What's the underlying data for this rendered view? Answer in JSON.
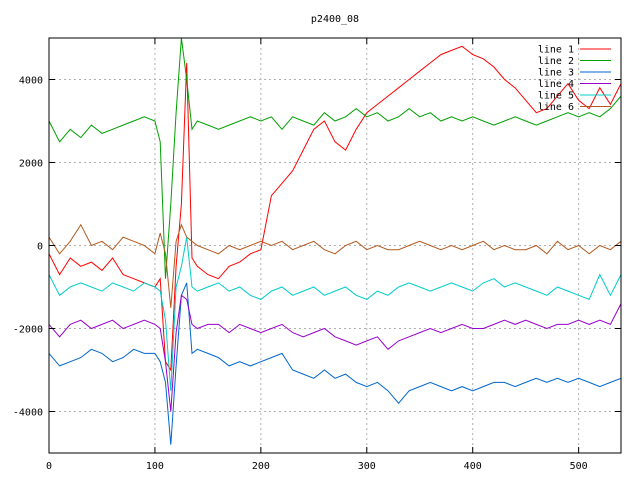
{
  "chart_data": {
    "type": "line",
    "title": "p2400_08",
    "xlabel": "",
    "ylabel": "",
    "xlim": [
      0,
      540
    ],
    "ylim": [
      -5000,
      5000
    ],
    "xticks": [
      0,
      100,
      200,
      300,
      400,
      500
    ],
    "yticks": [
      -4000,
      -2000,
      0,
      2000,
      4000
    ],
    "grid": true,
    "legend_position": "top-right",
    "x": [
      0,
      10,
      20,
      30,
      40,
      50,
      60,
      70,
      80,
      90,
      100,
      105,
      110,
      115,
      120,
      125,
      130,
      135,
      140,
      150,
      160,
      170,
      180,
      190,
      200,
      210,
      220,
      230,
      240,
      250,
      260,
      270,
      280,
      290,
      300,
      310,
      320,
      330,
      340,
      350,
      360,
      370,
      380,
      390,
      400,
      410,
      420,
      430,
      440,
      450,
      460,
      470,
      480,
      490,
      500,
      510,
      520,
      530,
      540
    ],
    "series": [
      {
        "name": "line 1",
        "color": "#ff0000",
        "values": [
          -200,
          -700,
          -300,
          -500,
          -400,
          -600,
          -300,
          -700,
          -800,
          -900,
          -1000,
          -800,
          -2800,
          -3000,
          -500,
          1000,
          4400,
          -300,
          -500,
          -700,
          -800,
          -500,
          -400,
          -200,
          -100,
          1200,
          1500,
          1800,
          2300,
          2800,
          3000,
          2500,
          2300,
          2800,
          3200,
          3400,
          3600,
          3800,
          4000,
          4200,
          4400,
          4600,
          4700,
          4800,
          4600,
          4500,
          4300,
          4000,
          3800,
          3500,
          3200,
          3300,
          3600,
          3900,
          3500,
          3300,
          3800,
          3400,
          3900
        ]
      },
      {
        "name": "line 2",
        "color": "#00a000",
        "values": [
          3000,
          2500,
          2800,
          2600,
          2900,
          2700,
          2800,
          2900,
          3000,
          3100,
          3000,
          2500,
          -800,
          1000,
          3200,
          5000,
          4000,
          2800,
          3000,
          2900,
          2800,
          2900,
          3000,
          3100,
          3000,
          3100,
          2800,
          3100,
          3000,
          2900,
          3200,
          3000,
          3100,
          3300,
          3100,
          3200,
          3000,
          3100,
          3300,
          3100,
          3200,
          3000,
          3100,
          3000,
          3100,
          3000,
          2900,
          3000,
          3100,
          3000,
          2900,
          3000,
          3100,
          3200,
          3100,
          3200,
          3100,
          3300,
          3600
        ]
      },
      {
        "name": "line 3",
        "color": "#0066cc",
        "values": [
          -2600,
          -2900,
          -2800,
          -2700,
          -2500,
          -2600,
          -2800,
          -2700,
          -2500,
          -2600,
          -2600,
          -2800,
          -3300,
          -4800,
          -2900,
          -1200,
          -900,
          -2600,
          -2500,
          -2600,
          -2700,
          -2900,
          -2800,
          -2900,
          -2800,
          -2700,
          -2600,
          -3000,
          -3100,
          -3200,
          -3000,
          -3200,
          -3100,
          -3300,
          -3400,
          -3300,
          -3500,
          -3800,
          -3500,
          -3400,
          -3300,
          -3400,
          -3500,
          -3400,
          -3500,
          -3400,
          -3300,
          -3300,
          -3400,
          -3300,
          -3200,
          -3300,
          -3200,
          -3300,
          -3200,
          -3300,
          -3400,
          -3300,
          -3200
        ]
      },
      {
        "name": "line 4",
        "color": "#9900cc",
        "values": [
          -1900,
          -2200,
          -1900,
          -1800,
          -2000,
          -1900,
          -1800,
          -2000,
          -1900,
          -1800,
          -1900,
          -2000,
          -2800,
          -4000,
          -2100,
          -1200,
          -1300,
          -1900,
          -2000,
          -1900,
          -1900,
          -2100,
          -1900,
          -2000,
          -2100,
          -2000,
          -1900,
          -2100,
          -2200,
          -2100,
          -2000,
          -2200,
          -2300,
          -2400,
          -2300,
          -2200,
          -2500,
          -2300,
          -2200,
          -2100,
          -2000,
          -2100,
          -2000,
          -1900,
          -2000,
          -2000,
          -1900,
          -1800,
          -1900,
          -1800,
          -1900,
          -2000,
          -1900,
          -1900,
          -1800,
          -1900,
          -1800,
          -1900,
          -1400
        ]
      },
      {
        "name": "line 5",
        "color": "#00cccc",
        "values": [
          -700,
          -1200,
          -1000,
          -900,
          -1000,
          -1100,
          -900,
          -1000,
          -1100,
          -900,
          -1000,
          -1100,
          -1800,
          -3500,
          -1000,
          -500,
          200,
          -1000,
          -1100,
          -1000,
          -900,
          -1100,
          -1000,
          -1200,
          -1300,
          -1100,
          -1000,
          -1200,
          -1100,
          -1000,
          -1200,
          -1100,
          -1000,
          -1200,
          -1300,
          -1100,
          -1200,
          -1000,
          -900,
          -1000,
          -1100,
          -1000,
          -900,
          -1000,
          -1100,
          -900,
          -800,
          -1000,
          -900,
          -1000,
          -1100,
          -1200,
          -1000,
          -1100,
          -1200,
          -1300,
          -700,
          -1200,
          -700
        ]
      },
      {
        "name": "line 6",
        "color": "#b35a1f",
        "values": [
          200,
          -200,
          100,
          500,
          0,
          100,
          -100,
          200,
          100,
          0,
          -200,
          300,
          -200,
          -1500,
          100,
          500,
          200,
          100,
          0,
          -100,
          -200,
          0,
          -100,
          0,
          100,
          0,
          100,
          -100,
          0,
          100,
          -100,
          -200,
          0,
          100,
          -100,
          0,
          -100,
          -100,
          0,
          100,
          0,
          -100,
          0,
          -100,
          0,
          100,
          -100,
          0,
          -100,
          -100,
          0,
          -200,
          100,
          -100,
          0,
          -200,
          0,
          -100,
          100
        ]
      }
    ]
  }
}
